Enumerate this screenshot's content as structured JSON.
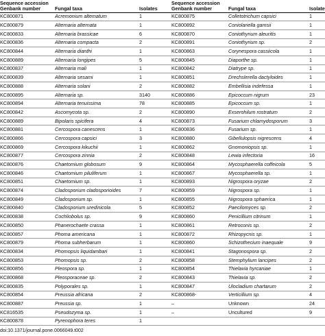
{
  "table": {
    "headers": {
      "accession_line1": "Sequence accession",
      "accession_line2": "Genbank number",
      "taxa": "Fungal taxa",
      "isolates": "Isolates"
    },
    "rows": [
      {
        "left": {
          "acc": "KC800871",
          "taxon": "Acremonium altematum",
          "italic": true,
          "iso": "1"
        },
        "right": {
          "acc": "KC800875",
          "taxon": "Colletotrichum capsici",
          "italic": true,
          "iso": "1"
        }
      },
      {
        "left": {
          "acc": "KC800879",
          "taxon": "Alternaria alternata",
          "italic": true,
          "iso": "1"
        },
        "right": {
          "acc": "KC800892",
          "taxon": "Coniolariella gamsii",
          "italic": true,
          "iso": "1"
        }
      },
      {
        "left": {
          "acc": "KC800833",
          "taxon": "Alternaria brassicae",
          "italic": true,
          "iso": "6"
        },
        "right": {
          "acc": "KC800870",
          "taxon": "Coniothyrium aleuritis",
          "italic": true,
          "iso": "1"
        }
      },
      {
        "left": {
          "acc": "KC800836",
          "taxon": "Alternaria compacta",
          "italic": true,
          "iso": "2"
        },
        "right": {
          "acc": "KC800891",
          "taxon": "Coniothyrium sp.",
          "italic": true,
          "iso": "2"
        }
      },
      {
        "left": {
          "acc": "KC800844",
          "taxon": "Alternaria dianthi",
          "italic": true,
          "iso": "1"
        },
        "right": {
          "acc": "KC800863",
          "taxon": "Corynespora cassiicola",
          "italic": true,
          "iso": "1"
        }
      },
      {
        "left": {
          "acc": "KC800889",
          "taxon": "Alternaria longipes",
          "italic": true,
          "iso": "5"
        },
        "right": {
          "acc": "KC800845",
          "taxon": "Diaporthe sp.",
          "italic": true,
          "iso": "1"
        }
      },
      {
        "left": {
          "acc": "KC800837",
          "taxon": "Alternaria mali",
          "italic": true,
          "iso": "1"
        },
        "right": {
          "acc": "KC800842",
          "taxon": "Diatrype sp.",
          "italic": true,
          "iso": "1"
        }
      },
      {
        "left": {
          "acc": "KC800839",
          "taxon": "Alternaria sesami",
          "italic": true,
          "iso": "1"
        },
        "right": {
          "acc": "KC800851",
          "taxon": "Drechslerella dactyloides",
          "italic": true,
          "iso": "1"
        }
      },
      {
        "left": {
          "acc": "KC800888",
          "taxon": "Alternaria solani",
          "italic": true,
          "iso": "2"
        },
        "right": {
          "acc": "KC800882",
          "taxon": "Embellisia indefessa",
          "italic": true,
          "iso": "1"
        }
      },
      {
        "left": {
          "acc": "KC800895",
          "taxon": "Alternaria sp.",
          "italic": true,
          "iso": "3140"
        },
        "right": {
          "acc": "KC800886",
          "taxon": "Epicoccum nigrum",
          "italic": true,
          "iso": "23"
        }
      },
      {
        "left": {
          "acc": "KC800894",
          "taxon": "Alternaria tenuissima",
          "italic": true,
          "iso": "78"
        },
        "right": {
          "acc": "KC800885",
          "taxon": "Epicoccum sp.",
          "italic": true,
          "iso": "1"
        }
      },
      {
        "left": {
          "acc": "KC800842",
          "taxon": "Ascomycota sp.",
          "italic": true,
          "iso": "2"
        },
        "right": {
          "acc": "KC800890",
          "taxon": "Exserohilum rostratum",
          "italic": true,
          "iso": "2"
        }
      },
      {
        "left": {
          "acc": "KC800889",
          "taxon": "Bipolaris spicifera",
          "italic": true,
          "iso": "4"
        },
        "right": {
          "acc": "KC800873",
          "taxon": "Fusarium chlamydosporum",
          "italic": true,
          "iso": "3"
        }
      },
      {
        "left": {
          "acc": "KC800881",
          "taxon": "Cercospora canescens",
          "italic": true,
          "iso": "1"
        },
        "right": {
          "acc": "KC800836",
          "taxon": "Fusarium sp.",
          "italic": true,
          "iso": "1"
        }
      },
      {
        "left": {
          "acc": "KC800866",
          "taxon": "Cercospora capsici",
          "italic": true,
          "iso": "3"
        },
        "right": {
          "acc": "KC800880",
          "taxon": "Gibellulopsis nigrescens",
          "italic": true,
          "iso": "4"
        }
      },
      {
        "left": {
          "acc": "KC800869",
          "taxon": "Cercospora kikuchii",
          "italic": true,
          "iso": "1"
        },
        "right": {
          "acc": "KC800862",
          "taxon": "Gnomoniopsis sp.",
          "italic": true,
          "iso": "1"
        }
      },
      {
        "left": {
          "acc": "KC800877",
          "taxon": "Cercospora zinnia",
          "italic": true,
          "iso": "2"
        },
        "right": {
          "acc": "KC800848",
          "taxon": "Lewia infectoria",
          "italic": true,
          "iso": "16"
        }
      },
      {
        "left": {
          "acc": "KC800876",
          "taxon": "Chaetomium globosum",
          "italic": true,
          "iso": "9"
        },
        "right": {
          "acc": "KC800864",
          "taxon": "Mycosphaerella coffeicola",
          "italic": true,
          "iso": "5"
        }
      },
      {
        "left": {
          "acc": "KC800846",
          "taxon": "Chaetomium piluliferum",
          "italic": true,
          "iso": "1"
        },
        "right": {
          "acc": "KC800867",
          "taxon": "Mycosphaerella sp.",
          "italic": true,
          "iso": "1"
        }
      },
      {
        "left": {
          "acc": "KC800851",
          "taxon": "Chaetomium sp.",
          "italic": true,
          "iso": "1"
        },
        "right": {
          "acc": "KC800893",
          "taxon": "Nigrospora oryzae",
          "italic": true,
          "iso": "2"
        }
      },
      {
        "left": {
          "acc": "KC800874",
          "taxon": "Cladosporium cladosporioides",
          "italic": true,
          "iso": "7"
        },
        "right": {
          "acc": "KC800859",
          "taxon": "Nigrospora sp.",
          "italic": true,
          "iso": "1"
        }
      },
      {
        "left": {
          "acc": "KC800849",
          "taxon": "Cladosporium sp.",
          "italic": true,
          "iso": "1"
        },
        "right": {
          "acc": "KC800855",
          "taxon": "Nigrospora sphaerica",
          "italic": true,
          "iso": "1"
        }
      },
      {
        "left": {
          "acc": "KC800840",
          "taxon": "Cladosporium uredinicola",
          "italic": true,
          "iso": "5"
        },
        "right": {
          "acc": "KC800852",
          "taxon": "Paecilomyces sp.",
          "italic": true,
          "iso": "2"
        }
      },
      {
        "left": {
          "acc": "KC800838",
          "taxon": "Cochliobolus sp.",
          "italic": true,
          "iso": "9"
        },
        "right": {
          "acc": "KC800860",
          "taxon": "Penicillium citrinum",
          "italic": true,
          "iso": "1"
        }
      },
      {
        "left": {
          "acc": "KC800850",
          "taxon": "Phanerochaete crassa",
          "italic": true,
          "iso": "1"
        },
        "right": {
          "acc": "KC800861",
          "taxon": "Retroconis sp.",
          "italic": true,
          "iso": "2"
        }
      },
      {
        "left": {
          "acc": "KC800857",
          "taxon": "Phoma americana",
          "italic": true,
          "iso": "1"
        },
        "right": {
          "acc": "KC800872",
          "taxon": "Rhizopycnis sp.",
          "italic": true,
          "iso": "1"
        }
      },
      {
        "left": {
          "acc": "KC800879",
          "taxon": "Phoma subherbarum",
          "italic": true,
          "iso": "1"
        },
        "right": {
          "acc": "KC800860",
          "taxon": "Schizothecium inaequale",
          "italic": true,
          "iso": "9"
        }
      },
      {
        "left": {
          "acc": "KC800834",
          "taxon": "Phomopsis liquidambari",
          "italic": true,
          "iso": "1"
        },
        "right": {
          "acc": "KC800841",
          "taxon": "Stagonospora sp.",
          "italic": true,
          "iso": "2"
        }
      },
      {
        "left": {
          "acc": "KC800853",
          "taxon": "Phomopsis sp.",
          "italic": true,
          "iso": "2"
        },
        "right": {
          "acc": "KC800858",
          "taxon": "Stemphylium lancipes",
          "italic": true,
          "iso": "2"
        }
      },
      {
        "left": {
          "acc": "KC800856",
          "taxon": "Pleospora sp.",
          "italic": true,
          "iso": "1"
        },
        "right": {
          "acc": "KC800854",
          "taxon": "Thielavia hyrcaniae",
          "italic": true,
          "iso": "1"
        }
      },
      {
        "left": {
          "acc": "KC800868",
          "taxon": "Pleosporaceae sp.",
          "italic": true,
          "iso": "2"
        },
        "right": {
          "acc": "KC800843",
          "taxon": "Thielavia sp.",
          "italic": true,
          "iso": "2"
        }
      },
      {
        "left": {
          "acc": "KC800835",
          "taxon": "Polyporales sp.",
          "italic": true,
          "iso": "1"
        },
        "right": {
          "acc": "KC800847",
          "taxon": "Ulocladium chartarum",
          "italic": true,
          "iso": "2"
        }
      },
      {
        "left": {
          "acc": "KC800854",
          "taxon": "Preussia africana",
          "italic": true,
          "iso": "2"
        },
        "right": {
          "acc": "KC800868-",
          "taxon": "Verticillium sp.",
          "italic": true,
          "iso": "4"
        }
      },
      {
        "left": {
          "acc": "KC800887",
          "taxon": "Preussia sp.",
          "italic": true,
          "iso": "1"
        },
        "right": {
          "acc": "–",
          "taxon": "Unknown",
          "italic": false,
          "iso": "24"
        }
      },
      {
        "left": {
          "acc": "KC816535",
          "taxon": "Pseudozyma sp.",
          "italic": true,
          "iso": "1"
        },
        "right": {
          "acc": "–",
          "taxon": "Uncultured",
          "italic": false,
          "iso": "9"
        }
      },
      {
        "left": {
          "acc": "KC800878",
          "taxon": "Pyrenophora teres",
          "italic": true,
          "iso": "1"
        },
        "right": {
          "acc": "",
          "taxon": "",
          "italic": false,
          "iso": ""
        }
      }
    ]
  },
  "footer": {
    "doi": "doi:10.1371/journal.pone.0066049.t002"
  }
}
